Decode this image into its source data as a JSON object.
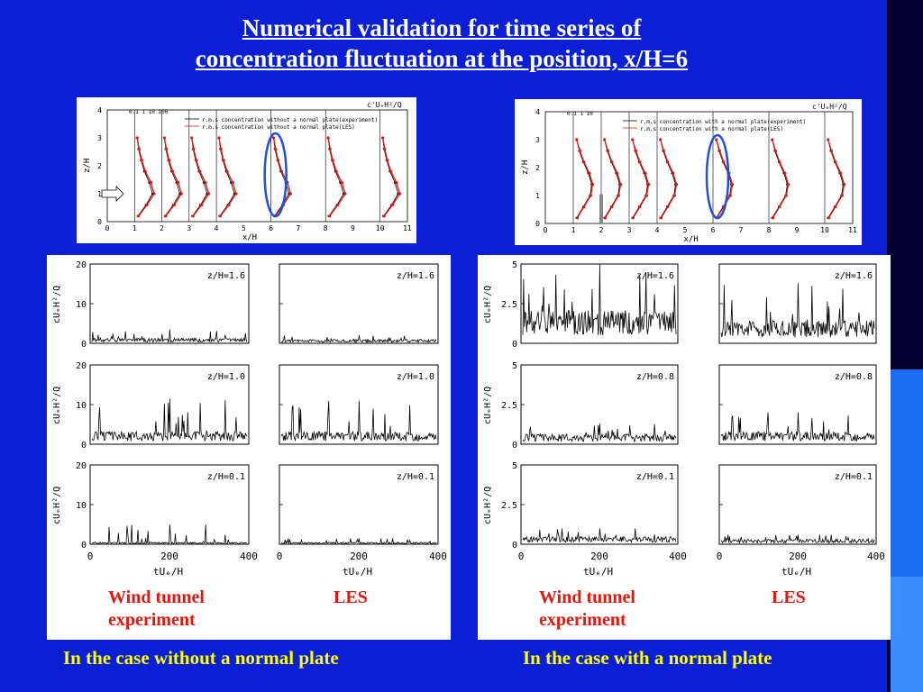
{
  "title_line1": "Numerical validation for time series of",
  "title_line2": "concentration fluctuation at the position, x/H=6",
  "profile_panels": [
    {
      "legend_1": "r.m.s concentration without a normal plate(experiment)",
      "legend_2": "r.m.s concentration without a normal plate(LES)",
      "corner_label": "c'UₑH²/Q",
      "scale_label": "0.1  1  10 100",
      "xlabel": "x/H",
      "ylabel": "z/H",
      "xticks": [
        "0",
        "1",
        "2",
        "3",
        "4",
        "5",
        "6",
        "7",
        "8",
        "9",
        "10",
        "11"
      ],
      "yticks": [
        "0",
        "1",
        "2",
        "3",
        "4"
      ]
    },
    {
      "legend_1": "r.m.s concentration with a normal plate(experiment)",
      "legend_2": "r.m.s concentration with a normal plate(LES)",
      "corner_label": "c'UₑH²/Q",
      "scale_label": "0.1  1  10",
      "xlabel": "x/H",
      "ylabel": "z/H",
      "xticks": [
        "0",
        "1",
        "2",
        "3",
        "4",
        "5",
        "6",
        "7",
        "8",
        "9",
        "10",
        "11"
      ],
      "yticks": [
        "0",
        "1",
        "2",
        "3",
        "4"
      ]
    }
  ],
  "timeseries": {
    "ylabel": "cUₑH²/Q",
    "xlabel": "tUₑ/H",
    "xticks": [
      "0",
      "200",
      "400"
    ],
    "left_yticks": [
      "0",
      "10",
      "20"
    ],
    "right_yticks": [
      "0",
      "2.5",
      "5"
    ]
  },
  "left_group": {
    "rows": [
      "z/H=1.6",
      "z/H=1.0",
      "z/H=0.1"
    ],
    "label_exp_1": "Wind tunnel",
    "label_exp_2": "experiment",
    "label_les": "LES",
    "caption": "In the case without a normal plate"
  },
  "right_group": {
    "rows": [
      "z/H=1.6",
      "z/H=0.8",
      "z/H=0.1"
    ],
    "label_exp_1": "Wind tunnel",
    "label_exp_2": "experiment",
    "label_les": "LES",
    "caption": "In the case with a normal plate"
  },
  "colors": {
    "background": "#0a1fd6",
    "title": "#ffffff",
    "caption": "#ffff00",
    "label": "#e8150e",
    "les_series": "#e8150e",
    "exp_series": "#000000",
    "highlight": "#1f4fe0"
  },
  "chart_data": [
    {
      "type": "line",
      "title": "without a normal plate — r.m.s concentration profiles",
      "xlabel": "x/H",
      "ylabel": "z/H",
      "xlim": [
        0,
        11
      ],
      "ylim": [
        0,
        4
      ],
      "highlighted_position": 6,
      "stations": [
        1,
        2,
        3,
        4,
        6,
        8,
        10
      ],
      "series": [
        {
          "name": "r.m.s concentration without a normal plate(experiment)",
          "z": [
            0.2,
            0.6,
            1.0,
            1.4,
            1.8,
            2.2,
            2.6,
            3.0
          ],
          "offset": [
            0.1,
            0.35,
            0.55,
            0.45,
            0.3,
            0.2,
            0.12,
            0.08
          ]
        },
        {
          "name": "r.m.s concentration without a normal plate(LES)",
          "z": [
            0.2,
            0.6,
            1.0,
            1.4,
            1.8,
            2.2,
            2.6,
            3.0
          ],
          "offset": [
            0.12,
            0.38,
            0.6,
            0.5,
            0.33,
            0.22,
            0.14,
            0.08
          ]
        }
      ]
    },
    {
      "type": "line",
      "title": "with a normal plate — r.m.s concentration profiles",
      "xlabel": "x/H",
      "ylabel": "z/H",
      "xlim": [
        0,
        11
      ],
      "ylim": [
        0,
        4
      ],
      "highlighted_position": 6,
      "stations": [
        1,
        2,
        3,
        4,
        6,
        8,
        10
      ],
      "series": [
        {
          "name": "r.m.s concentration with a normal plate(experiment)",
          "z": [
            0.2,
            0.6,
            1.0,
            1.4,
            1.8,
            2.2,
            2.6,
            3.0
          ],
          "offset": [
            0.1,
            0.3,
            0.5,
            0.55,
            0.45,
            0.3,
            0.18,
            0.1
          ]
        },
        {
          "name": "r.m.s concentration with a normal plate(LES)",
          "z": [
            0.2,
            0.6,
            1.0,
            1.4,
            1.8,
            2.2,
            2.6,
            3.0
          ],
          "offset": [
            0.12,
            0.32,
            0.52,
            0.58,
            0.48,
            0.32,
            0.2,
            0.1
          ]
        }
      ]
    },
    {
      "type": "line",
      "title": "without a normal plate — time series of cUₑH²/Q at x/H=6",
      "xlabel": "tUₑ/H",
      "ylabel": "cUₑH²/Q",
      "xlim": [
        0,
        400
      ],
      "ylim": [
        0,
        20
      ],
      "panels": [
        {
          "row": "z/H=1.6",
          "column": "Wind tunnel experiment",
          "approx_mean": 0.8,
          "approx_peak": 3.5
        },
        {
          "row": "z/H=1.6",
          "column": "LES",
          "approx_mean": 0.6,
          "approx_peak": 2.0
        },
        {
          "row": "z/H=1.0",
          "column": "Wind tunnel experiment",
          "approx_mean": 2.0,
          "approx_peak": 11.5
        },
        {
          "row": "z/H=1.0",
          "column": "LES",
          "approx_mean": 2.0,
          "approx_peak": 11.0
        },
        {
          "row": "z/H=0.1",
          "column": "Wind tunnel experiment",
          "approx_mean": 0.3,
          "approx_peak": 5.0
        },
        {
          "row": "z/H=0.1",
          "column": "LES",
          "approx_mean": 0.3,
          "approx_peak": 1.5
        }
      ]
    },
    {
      "type": "line",
      "title": "with a normal plate — time series of cUₑH²/Q at x/H=6",
      "xlabel": "tUₑ/H",
      "ylabel": "cUₑH²/Q",
      "xlim": [
        0,
        400
      ],
      "ylim": [
        0,
        5
      ],
      "panels": [
        {
          "row": "z/H=1.6",
          "column": "Wind tunnel experiment",
          "approx_mean": 1.3,
          "approx_peak": 5.0
        },
        {
          "row": "z/H=1.6",
          "column": "LES",
          "approx_mean": 0.9,
          "approx_peak": 3.8
        },
        {
          "row": "z/H=0.8",
          "column": "Wind tunnel experiment",
          "approx_mean": 0.4,
          "approx_peak": 1.3
        },
        {
          "row": "z/H=0.8",
          "column": "LES",
          "approx_mean": 0.5,
          "approx_peak": 2.0
        },
        {
          "row": "z/H=0.1",
          "column": "Wind tunnel experiment",
          "approx_mean": 0.3,
          "approx_peak": 1.0
        },
        {
          "row": "z/H=0.1",
          "column": "LES",
          "approx_mean": 0.2,
          "approx_peak": 0.6
        }
      ]
    }
  ]
}
